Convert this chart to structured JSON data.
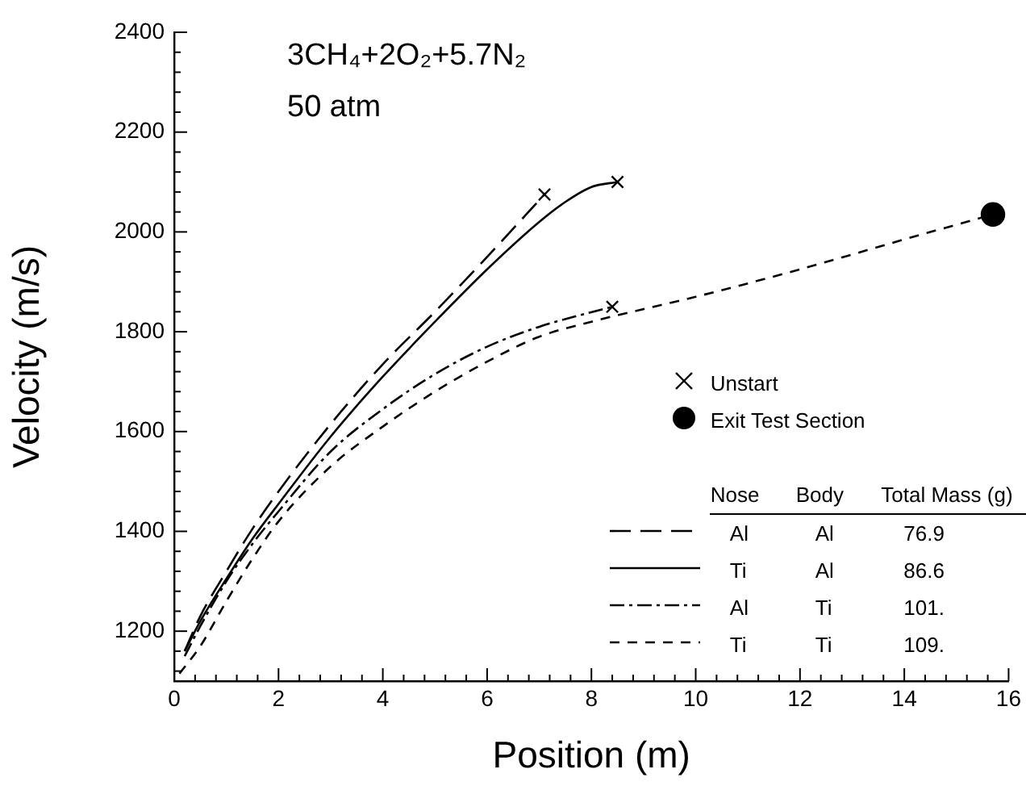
{
  "chart_data": {
    "type": "line",
    "xlabel": "Position (m)",
    "ylabel": "Velocity (m/s)",
    "annotations": [
      "3CH₄+2O₂+5.7N₂",
      "50 atm"
    ],
    "legend_title": "Nose  Body  Total Mass (g)",
    "xlim": [
      0,
      16
    ],
    "ylim": [
      1100,
      2400
    ],
    "xticks": [
      0,
      {
        "value": 0.4,
        "label": null
      },
      {
        "value": 0.8,
        "label": null
      },
      {
        "value": 1.2,
        "label": null
      },
      {
        "value": 1.6,
        "label": null
      },
      2,
      {
        "value": 2.4,
        "label": null
      },
      {
        "value": 2.8,
        "label": null
      },
      {
        "value": 3.2,
        "label": null
      },
      {
        "value": 3.6,
        "label": null
      },
      4,
      {
        "value": 4.4,
        "label": null
      },
      {
        "value": 4.8,
        "label": null
      },
      {
        "value": 5.2,
        "label": null
      },
      {
        "value": 5.6,
        "label": null
      },
      6,
      {
        "value": 6.4,
        "label": null
      },
      {
        "value": 6.8,
        "label": null
      },
      {
        "value": 7.2,
        "label": null
      },
      {
        "value": 7.6,
        "label": null
      },
      8,
      {
        "value": 8.4,
        "label": null
      },
      {
        "value": 8.8,
        "label": null
      },
      {
        "value": 9.2,
        "label": null
      },
      {
        "value": 9.6,
        "label": null
      },
      10,
      {
        "value": 10.4,
        "label": null
      },
      {
        "value": 10.8,
        "label": null
      },
      {
        "value": 11.2,
        "label": null
      },
      {
        "value": 11.6,
        "label": null
      },
      12,
      {
        "value": 12.4,
        "label": null
      },
      {
        "value": 12.8,
        "label": null
      },
      {
        "value": 13.2,
        "label": null
      },
      {
        "value": 13.6,
        "label": null
      },
      14,
      {
        "value": 14.4,
        "label": null
      },
      {
        "value": 14.8,
        "label": null
      },
      {
        "value": 15.2,
        "label": null
      },
      {
        "value": 15.6,
        "label": null
      },
      16
    ],
    "yticks": [
      {
        "value": 1120,
        "label": null
      },
      {
        "value": 1160,
        "label": null
      },
      1200,
      {
        "value": 1240,
        "label": null
      },
      {
        "value": 1280,
        "label": null
      },
      {
        "value": 1320,
        "label": null
      },
      {
        "value": 1360,
        "label": null
      },
      1400,
      {
        "value": 1440,
        "label": null
      },
      {
        "value": 1480,
        "label": null
      },
      {
        "value": 1520,
        "label": null
      },
      {
        "value": 1560,
        "label": null
      },
      1600,
      {
        "value": 1640,
        "label": null
      },
      {
        "value": 1680,
        "label": null
      },
      {
        "value": 1720,
        "label": null
      },
      {
        "value": 1760,
        "label": null
      },
      1800,
      {
        "value": 1840,
        "label": null
      },
      {
        "value": 1880,
        "label": null
      },
      {
        "value": 1920,
        "label": null
      },
      {
        "value": 1960,
        "label": null
      },
      2000,
      {
        "value": 2040,
        "label": null
      },
      {
        "value": 2080,
        "label": null
      },
      {
        "value": 2120,
        "label": null
      },
      {
        "value": 2160,
        "label": null
      },
      2200,
      {
        "value": 2240,
        "label": null
      },
      {
        "value": 2280,
        "label": null
      },
      {
        "value": 2320,
        "label": null
      },
      {
        "value": 2360,
        "label": null
      },
      2400
    ],
    "grid": false,
    "legend": "bottom right",
    "marker": "none",
    "series": [
      {
        "name": "Al  Al  76.9",
        "color": "#000000",
        "line_style": "longdash",
        "x": [
          0.2,
          0.5,
          1,
          1.5,
          2,
          3,
          4,
          5,
          6,
          7.1
        ],
        "values": [
          1160,
          1230,
          1320,
          1405,
          1480,
          1615,
          1735,
          1840,
          1950,
          2075
        ]
      },
      {
        "name": "Ti  Al  86.6",
        "color": "#000000",
        "line_style": "solid",
        "x": [
          0.2,
          0.5,
          1,
          1.5,
          2,
          3,
          4,
          5,
          6,
          7,
          7.5,
          8,
          8.5
        ],
        "values": [
          1160,
          1220,
          1305,
          1385,
          1455,
          1590,
          1710,
          1820,
          1925,
          2020,
          2060,
          2090,
          2100
        ]
      },
      {
        "name": "Al  Ti  101.",
        "color": "#000000",
        "line_style": "dashdot",
        "x": [
          0.2,
          0.5,
          1,
          1.5,
          2,
          3,
          4,
          5,
          6,
          7,
          8.4
        ],
        "values": [
          1150,
          1210,
          1300,
          1375,
          1440,
          1560,
          1645,
          1715,
          1770,
          1810,
          1850
        ]
      },
      {
        "name": "Ti  Ti  109.",
        "color": "#000000",
        "line_style": "dashed",
        "x": [
          0.1,
          0.5,
          1,
          1.5,
          2,
          3,
          4,
          5,
          6,
          7,
          8,
          10,
          12,
          14,
          15.7
        ],
        "values": [
          1115,
          1170,
          1260,
          1345,
          1420,
          1530,
          1610,
          1680,
          1740,
          1790,
          1820,
          1870,
          1925,
          1985,
          2035
        ]
      },
      {
        "name": "Unstart",
        "type": "scatter",
        "color": "#000000",
        "marker": "cross",
        "x": [
          7.1,
          8.5,
          8.4
        ],
        "values": [
          2075,
          2100,
          1850
        ]
      },
      {
        "name": "Exit Test Section",
        "type": "scatter",
        "color": "#000000",
        "marker": "circle",
        "x": [
          15.7
        ],
        "values": [
          2035
        ]
      }
    ]
  }
}
